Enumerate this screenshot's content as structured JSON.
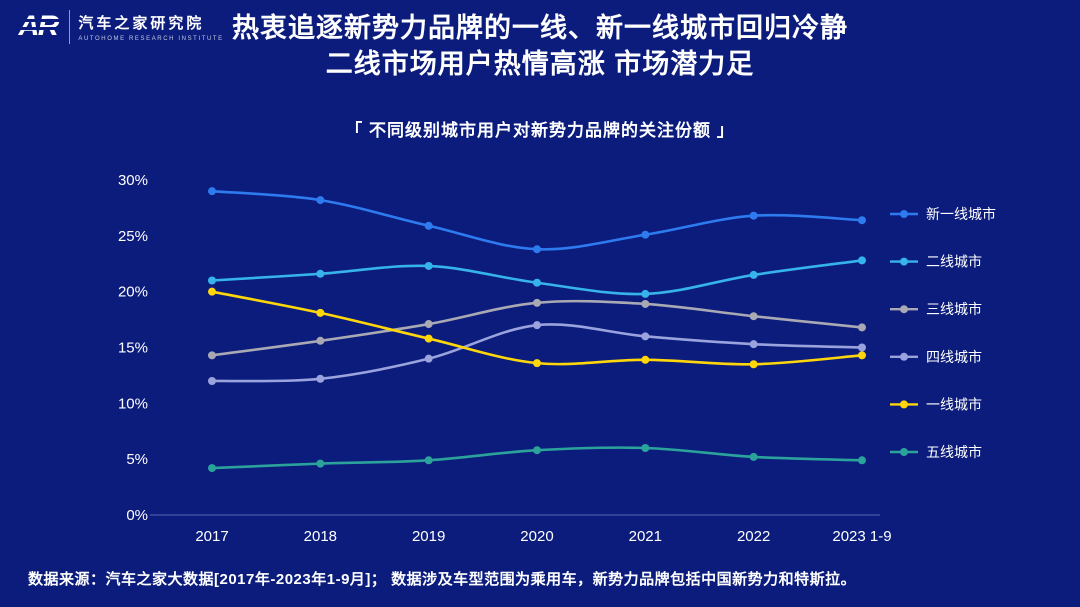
{
  "colors": {
    "background": "#0b1c7d",
    "text": "#ffffff",
    "axis_line": "rgba(170,180,230,0.5)"
  },
  "logo": {
    "mark": "AR",
    "name": "汽车之家研究院",
    "sub": "AUTOHOME RESEARCH INSTITUTE"
  },
  "title": {
    "line1": "热衷追逐新势力品牌的一线、新一线城市回归冷静",
    "line2": "二线市场用户热情高涨 市场潜力足"
  },
  "chart_title": "「 不同级别城市用户对新势力品牌的关注份额 」",
  "footer": "数据来源：汽车之家大数据[2017年-2023年1-9月]；  数据涉及车型范围为乘用车，新势力品牌包括中国新势力和特斯拉。",
  "chart_data": {
    "type": "line",
    "title": "不同级别城市用户对新势力品牌的关注份额",
    "x": [
      "2017",
      "2018",
      "2019",
      "2020",
      "2021",
      "2022",
      "2023 1-9"
    ],
    "xlabel": "",
    "ylabel": "",
    "ylim": [
      0,
      30
    ],
    "yticks": [
      "0%",
      "5%",
      "10%",
      "15%",
      "20%",
      "25%",
      "30%"
    ],
    "grid": false,
    "legend_position": "right",
    "series": [
      {
        "name": "新一线城市",
        "color": "#2e7bf0",
        "values": [
          29.0,
          28.2,
          25.9,
          23.8,
          25.1,
          26.8,
          26.4
        ]
      },
      {
        "name": "二线城市",
        "color": "#36b3ea",
        "values": [
          21.0,
          21.6,
          22.3,
          20.8,
          19.8,
          21.5,
          22.8
        ]
      },
      {
        "name": "三线城市",
        "color": "#a9a9b4",
        "values": [
          14.3,
          15.6,
          17.1,
          19.0,
          18.9,
          17.8,
          16.8
        ]
      },
      {
        "name": "四线城市",
        "color": "#9aa3dd",
        "values": [
          12.0,
          12.2,
          14.0,
          17.0,
          16.0,
          15.3,
          15.0
        ]
      },
      {
        "name": "一线城市",
        "color": "#ffd60a",
        "values": [
          20.0,
          18.1,
          15.8,
          13.6,
          13.9,
          13.5,
          14.3
        ]
      },
      {
        "name": "五线城市",
        "color": "#2ba39b",
        "values": [
          4.2,
          4.6,
          4.9,
          5.8,
          6.0,
          5.2,
          4.9
        ]
      }
    ]
  }
}
